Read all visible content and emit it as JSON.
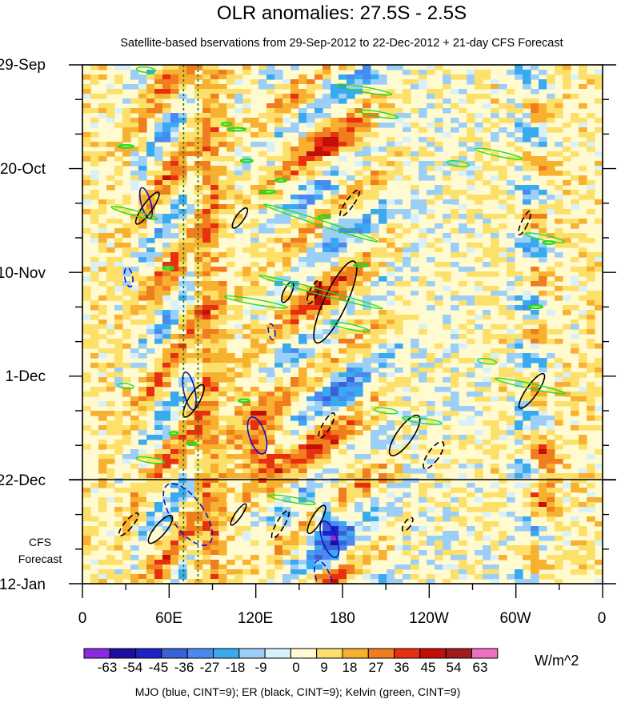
{
  "chart_data": {
    "type": "heatmap",
    "title": "OLR anomalies: 27.5S - 2.5S",
    "subtitle": "Satellite-based bservations from 29-Sep-2012 to 22-Dec-2012 + 21-day CFS Forecast",
    "x_ticks": [
      "0",
      "60E",
      "120E",
      "180",
      "120W",
      "60W",
      "0"
    ],
    "x_range": [
      0,
      360
    ],
    "y_ticks": [
      "29-Sep",
      "20-Oct",
      "10-Nov",
      "1-Dec",
      "22-Dec",
      "12-Jan"
    ],
    "y_range_days": [
      0,
      105
    ],
    "obs_end_label": "22-Dec",
    "forecast_label_line1": "CFS",
    "forecast_label_line2": "Forecast",
    "colorbar_labels": [
      "-63",
      "-54",
      "-45",
      "-36",
      "-27",
      "-18",
      "-9",
      "0",
      "9",
      "18",
      "27",
      "36",
      "45",
      "54",
      "63"
    ],
    "colorbar_colors": [
      "#8a2be2",
      "#1a10a0",
      "#2020c8",
      "#3a62d8",
      "#4a8af0",
      "#3aaaf0",
      "#9ccff8",
      "#d8f0fa",
      "#fffad0",
      "#fce06a",
      "#f8b030",
      "#f07e1e",
      "#e83010",
      "#c01008",
      "#a01c1c",
      "#f070c0"
    ],
    "units": "W/m^2",
    "footnote": "MJO (blue, CINT=9); ER (black, CINT=9); Kelvin (green, CINT=9)",
    "series": [
      {
        "name": "MJO",
        "color": "#1010c8",
        "contour_interval": 9
      },
      {
        "name": "ER",
        "color": "#000000",
        "contour_interval": 9
      },
      {
        "name": "Kelvin",
        "color": "#22dd22",
        "contour_interval": 9
      }
    ],
    "reference_longitudes": [
      70,
      80
    ]
  }
}
